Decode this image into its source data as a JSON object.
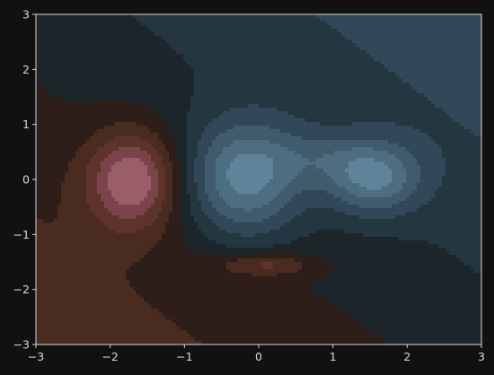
{
  "chart_data": {
    "type": "contour",
    "title": "",
    "xlabel": "",
    "ylabel": "",
    "xlim": [
      -3,
      3
    ],
    "ylim": [
      -3,
      3
    ],
    "xticks": [
      -3,
      -2,
      -1,
      0,
      1,
      2,
      3
    ],
    "yticks": [
      -3,
      -2,
      -1,
      0,
      1,
      2,
      3
    ],
    "tick_labels_x": [
      "−3",
      "−2",
      "−1",
      "0",
      "1",
      "2",
      "3"
    ],
    "tick_labels_y": [
      "−3",
      "−2",
      "−1",
      "0",
      "1",
      "2",
      "3"
    ],
    "grid": false,
    "background_color": "#111111",
    "axes_color": "#d8d8d8",
    "colormap": "diverging blue-grey to brown-red",
    "components": [
      {
        "x": -1.7,
        "y": 0.0,
        "sx": 0.42,
        "sy": 0.62,
        "amp": 1.0
      },
      {
        "x": -0.2,
        "y": 0.0,
        "sx": 0.55,
        "sy": 0.75,
        "amp": -1.0
      },
      {
        "x": 1.55,
        "y": 0.0,
        "sx": 0.45,
        "sy": 0.45,
        "amp": -0.8
      },
      {
        "x": 0.9,
        "y": 0.4,
        "sx": 0.6,
        "sy": 0.35,
        "amp": -0.3
      },
      {
        "x": 0.1,
        "y": -1.55,
        "sx": 0.45,
        "sy": 0.15,
        "amp": 0.5
      }
    ],
    "background_gradient": 0.08,
    "levels": [
      -0.9,
      -0.7,
      -0.5,
      -0.3,
      -0.1,
      0.1,
      0.3,
      0.5,
      0.7,
      0.9
    ],
    "level_colors": [
      "#5f8399",
      "#4d6d80",
      "#3f5b6c",
      "#314858",
      "#243640",
      "#1c262a",
      "#2e1e19",
      "#4a2b20",
      "#5e332d",
      "#79444a",
      "#9a5d6a"
    ]
  }
}
